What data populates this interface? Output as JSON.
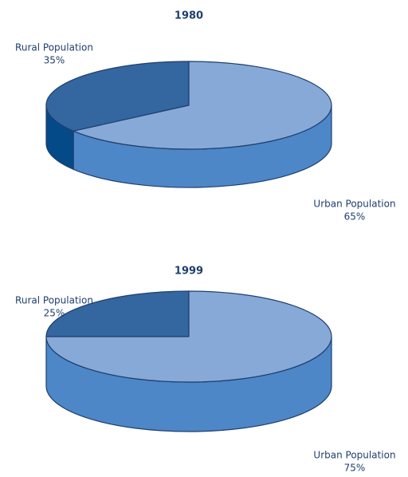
{
  "chart_data": [
    {
      "type": "pie",
      "title": "1980",
      "categories": [
        "Rural Population",
        "Urban Population"
      ],
      "values": [
        35,
        65
      ],
      "value_labels": [
        "35%",
        "65%"
      ],
      "colors": [
        "#3466a0",
        "#87a9d8"
      ],
      "side_colors": [
        "#054a88",
        "#4d87c8"
      ]
    },
    {
      "type": "pie",
      "title": "1999",
      "categories": [
        "Rural Population",
        "Urban Population"
      ],
      "values": [
        25,
        75
      ],
      "value_labels": [
        "25%",
        "75%"
      ],
      "colors": [
        "#3466a0",
        "#87a9d8"
      ],
      "side_colors": [
        "#054a88",
        "#4d87c8"
      ]
    }
  ]
}
